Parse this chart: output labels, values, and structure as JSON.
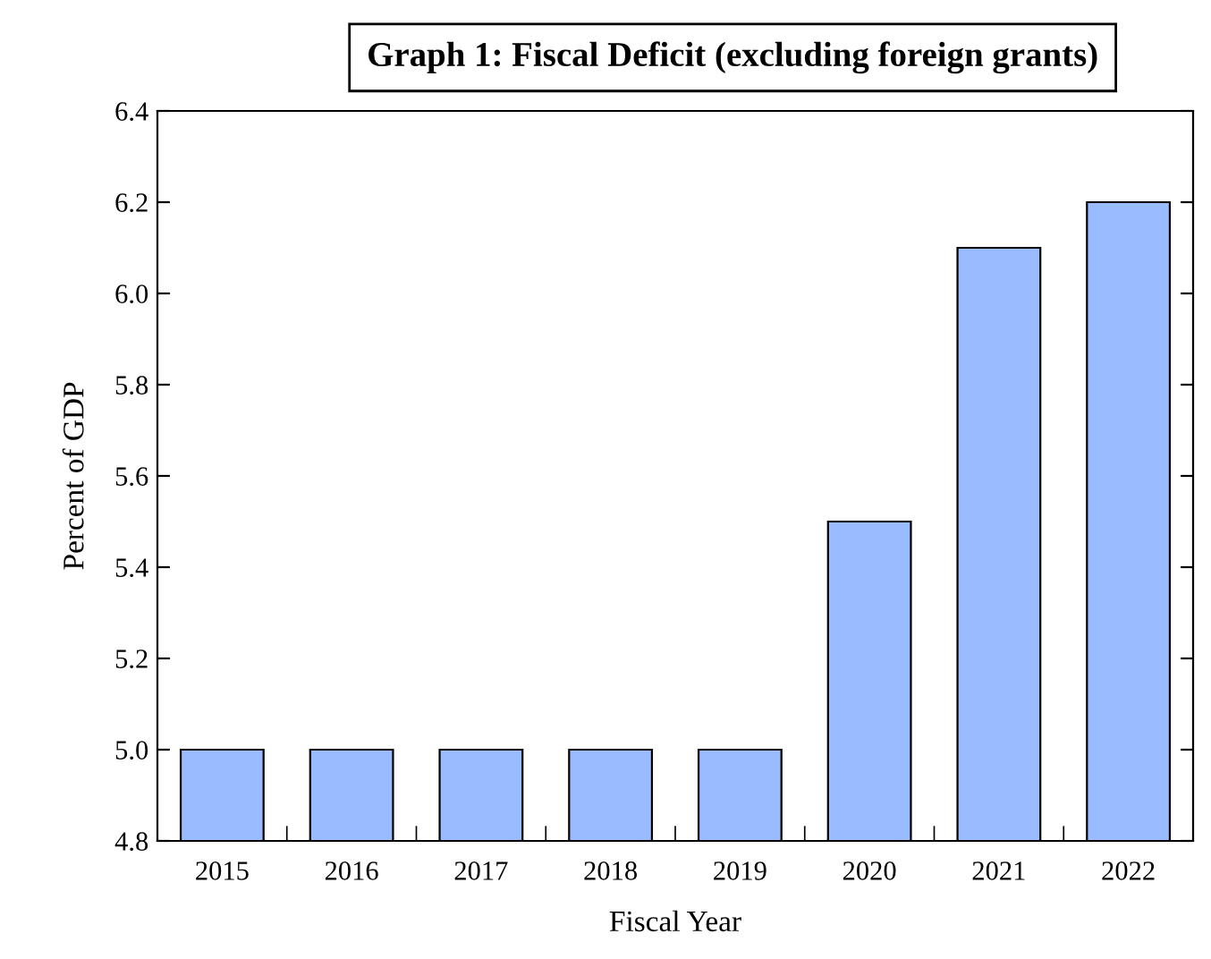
{
  "chart_data": {
    "type": "bar",
    "title": "Graph 1: Fiscal Deficit (excluding foreign grants)",
    "xlabel": "Fiscal Year",
    "ylabel": "Percent of GDP",
    "categories": [
      "2015",
      "2016",
      "2017",
      "2018",
      "2019",
      "2020",
      "2021",
      "2022"
    ],
    "values": [
      5.0,
      5.0,
      5.0,
      5.0,
      5.0,
      5.5,
      6.1,
      6.2
    ],
    "color": "#99bbff",
    "ylim": [
      4.8,
      6.4
    ],
    "yticks": [
      {
        "value": 4.8,
        "label": "4.8"
      },
      {
        "value": 5.0,
        "label": "5.0"
      },
      {
        "value": 5.2,
        "label": "5.2"
      },
      {
        "value": 5.4,
        "label": "5.4"
      },
      {
        "value": 5.6,
        "label": "5.6"
      },
      {
        "value": 5.8,
        "label": "5.8"
      },
      {
        "value": 6.0,
        "label": "6.0"
      },
      {
        "value": 6.2,
        "label": "6.2"
      },
      {
        "value": 6.4,
        "label": "6.4"
      }
    ],
    "grid": false
  }
}
